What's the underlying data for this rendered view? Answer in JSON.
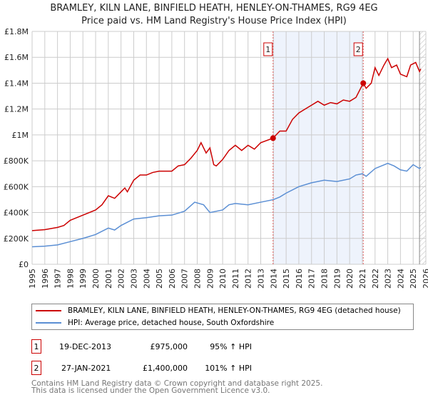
{
  "title": "BRAMLEY, KILN LANE, BINFIELD HEATH, HENLEY-ON-THAMES, RG9 4EG",
  "subtitle": "Price paid vs. HM Land Registry's House Price Index (HPI)",
  "chart_data": {
    "type": "line",
    "xlim": [
      1995,
      2026
    ],
    "ylim": [
      0,
      1800000
    ],
    "y_ticks": [
      {
        "v": 0,
        "label": "£0"
      },
      {
        "v": 200000,
        "label": "£200K"
      },
      {
        "v": 400000,
        "label": "£400K"
      },
      {
        "v": 600000,
        "label": "£600K"
      },
      {
        "v": 800000,
        "label": "£800K"
      },
      {
        "v": 1000000,
        "label": "£1M"
      },
      {
        "v": 1200000,
        "label": "£1.2M"
      },
      {
        "v": 1400000,
        "label": "£1.4M"
      },
      {
        "v": 1600000,
        "label": "£1.6M"
      },
      {
        "v": 1800000,
        "label": "£1.8M"
      }
    ],
    "x_ticks": [
      "1995",
      "1996",
      "1997",
      "1998",
      "1999",
      "2000",
      "2001",
      "2002",
      "2003",
      "2004",
      "2005",
      "2006",
      "2007",
      "2008",
      "2009",
      "2010",
      "2011",
      "2012",
      "2013",
      "2014",
      "2015",
      "2016",
      "2017",
      "2018",
      "2019",
      "2020",
      "2021",
      "2022",
      "2023",
      "2024",
      "2025",
      "2026"
    ],
    "grid": true,
    "series": [
      {
        "name": "BRAMLEY, KILN LANE, BINFIELD HEATH, HENLEY-ON-THAMES, RG9 4EG (detached house)",
        "color": "#cc0000",
        "x": [
          1995,
          1996,
          1997,
          1997.5,
          1998,
          1999,
          2000,
          2000.5,
          2001,
          2001.5,
          2002,
          2002.3,
          2002.5,
          2003,
          2003.5,
          2004,
          2004.5,
          2005,
          2006,
          2006.5,
          2007,
          2007.5,
          2008,
          2008.3,
          2008.7,
          2009,
          2009.3,
          2009.5,
          2010,
          2010.5,
          2011,
          2011.5,
          2012,
          2012.5,
          2013,
          2013.97,
          2014.5,
          2015,
          2015.5,
          2016,
          2016.5,
          2017,
          2017.5,
          2018,
          2018.5,
          2019,
          2019.5,
          2020,
          2020.5,
          2021.07,
          2021.3,
          2021.7,
          2022,
          2022.3,
          2022.7,
          2023,
          2023.3,
          2023.7,
          2024,
          2024.5,
          2024.8,
          2025.2,
          2025.5,
          2025.6
        ],
        "y": [
          260000,
          268000,
          285000,
          300000,
          340000,
          380000,
          420000,
          460000,
          530000,
          510000,
          560000,
          590000,
          560000,
          650000,
          690000,
          690000,
          710000,
          720000,
          720000,
          760000,
          770000,
          820000,
          880000,
          940000,
          860000,
          900000,
          770000,
          760000,
          810000,
          880000,
          920000,
          880000,
          920000,
          890000,
          940000,
          975000,
          1030000,
          1030000,
          1120000,
          1170000,
          1200000,
          1230000,
          1260000,
          1230000,
          1250000,
          1240000,
          1270000,
          1260000,
          1290000,
          1400000,
          1360000,
          1400000,
          1520000,
          1460000,
          1540000,
          1590000,
          1520000,
          1540000,
          1470000,
          1450000,
          1540000,
          1560000,
          1490000,
          1510000
        ]
      },
      {
        "name": "HPI: Average price, detached house, South Oxfordshire",
        "color": "#5b8fd4",
        "x": [
          1995,
          1996,
          1997,
          1998,
          1999,
          2000,
          2001,
          2001.5,
          2002,
          2003,
          2004,
          2005,
          2006,
          2007,
          2007.8,
          2008.5,
          2009,
          2010,
          2010.5,
          2011,
          2012,
          2013,
          2014,
          2014.5,
          2015,
          2016,
          2017,
          2018,
          2019,
          2020,
          2020.5,
          2021,
          2021.3,
          2022,
          2022.5,
          2023,
          2023.5,
          2024,
          2024.5,
          2025,
          2025.5,
          2025.6
        ],
        "y": [
          135000,
          140000,
          150000,
          175000,
          200000,
          230000,
          280000,
          265000,
          300000,
          350000,
          360000,
          375000,
          380000,
          410000,
          480000,
          460000,
          400000,
          420000,
          460000,
          470000,
          460000,
          480000,
          500000,
          520000,
          550000,
          600000,
          630000,
          650000,
          640000,
          660000,
          690000,
          700000,
          680000,
          740000,
          760000,
          780000,
          760000,
          730000,
          720000,
          770000,
          740000,
          750000
        ]
      }
    ],
    "sales": [
      {
        "label": "1",
        "x": 2013.97,
        "date": "19-DEC-2013",
        "price": 975000,
        "price_text": "£975,000",
        "hpi_text": "95% ↑ HPI"
      },
      {
        "label": "2",
        "x": 2021.07,
        "date": "27-JAN-2021",
        "price": 1400000,
        "price_text": "£1,400,000",
        "hpi_text": "101% ↑ HPI"
      }
    ],
    "hatched_from": 2025.5,
    "legend_placement": "below"
  },
  "footer": [
    "Contains HM Land Registry data © Crown copyright and database right 2025.",
    "This data is licensed under the Open Government Licence v3.0."
  ]
}
